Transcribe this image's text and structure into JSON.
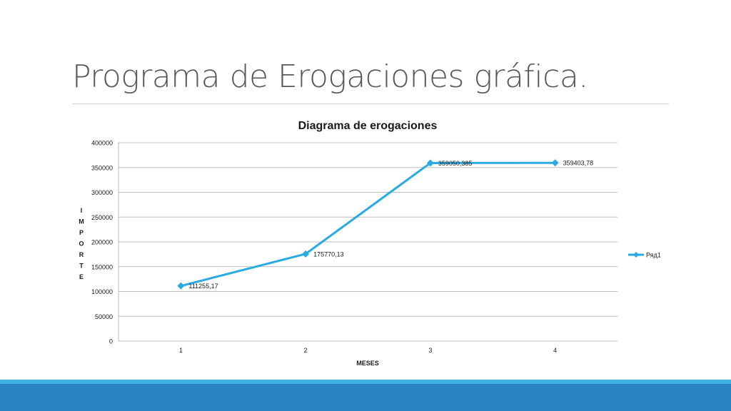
{
  "slide": {
    "title": "Programa de Erogaciones gráfica."
  },
  "colors": {
    "series": "#29abe2",
    "grid": "#bfbfbf",
    "footer_light": "#3fb0e3",
    "footer_dark": "#2a83c5"
  },
  "chart_data": {
    "type": "line",
    "title": "Diagrama de erogaciones",
    "xlabel": "MESES",
    "ylabel": "IMPORTE",
    "categories": [
      "1",
      "2",
      "3",
      "4"
    ],
    "y_ticks": [
      "0",
      "50000",
      "100000",
      "150000",
      "200000",
      "250000",
      "300000",
      "350000",
      "400000"
    ],
    "ylim": [
      0,
      400000
    ],
    "y_step": 50000,
    "grid": true,
    "legend_position": "right",
    "series": [
      {
        "name": "Ряд1",
        "values": [
          111255.17,
          175770.13,
          359050.385,
          359403.78
        ],
        "labels": [
          "111255,17",
          "175770,13",
          "359050,385",
          "359403,78"
        ]
      }
    ]
  }
}
